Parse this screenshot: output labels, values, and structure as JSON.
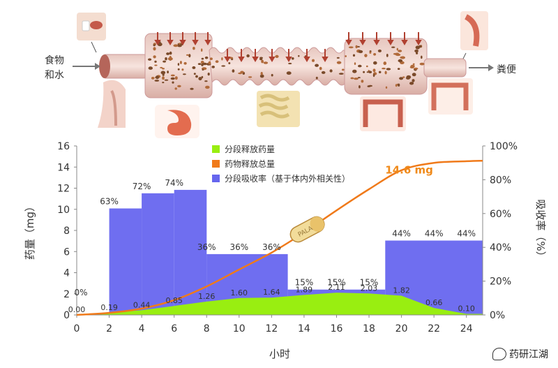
{
  "diagram": {
    "input_label_line1": "食物",
    "input_label_line2": "和水",
    "output_label": "粪便",
    "pill_text": "PALA"
  },
  "chart_data": {
    "type": "bar",
    "xlabel": "小时",
    "ylabel_left": "药量（mg）",
    "ylabel_right": "吸收率（%）",
    "x_ticks": [
      "0",
      "2",
      "4",
      "6",
      "8",
      "10",
      "12",
      "14",
      "16",
      "18",
      "20",
      "22",
      "24"
    ],
    "y_left_ticks": [
      "0",
      "2",
      "4",
      "6",
      "8",
      "10",
      "12",
      "14",
      "16"
    ],
    "y_right_ticks": [
      "0%",
      "20%",
      "40%",
      "60%",
      "80%",
      "100%"
    ],
    "ylim_left": [
      0,
      16
    ],
    "ylim_right": [
      0,
      100
    ],
    "legend": {
      "placement": "top-center",
      "items": [
        {
          "name": "分段释放药量",
          "color": "#99ee11"
        },
        {
          "name": "药物释放总量",
          "color": "#f07a1a"
        },
        {
          "name": "分段吸收率（基于体内外相关性）",
          "color": "#6666ee"
        }
      ]
    },
    "absorption_series": {
      "name": "分段吸收率（基于体内外相关性）",
      "color": "#6f6ef0",
      "segments": [
        {
          "x0": 0,
          "x1": 2,
          "value": 0,
          "label": "0%"
        },
        {
          "x0": 2,
          "x1": 4,
          "value": 63,
          "label": "63%"
        },
        {
          "x0": 4,
          "x1": 6,
          "value": 72,
          "label": "72%"
        },
        {
          "x0": 6,
          "x1": 8,
          "value": 74,
          "label": "74%"
        },
        {
          "x0": 8,
          "x1": 13,
          "value": 36,
          "label": "36%"
        },
        {
          "x0": 13,
          "x1": 19,
          "value": 15,
          "label": "15%"
        },
        {
          "x0": 19,
          "x1": 25,
          "value": 44,
          "label": "44%"
        }
      ],
      "value_labels": [
        {
          "x": 0,
          "label": "0%"
        },
        {
          "x": 2,
          "label": "63%"
        },
        {
          "x": 4,
          "label": "72%"
        },
        {
          "x": 6,
          "label": "74%"
        },
        {
          "x": 8,
          "label": "36%"
        },
        {
          "x": 10,
          "label": "36%"
        },
        {
          "x": 12,
          "label": "36%"
        },
        {
          "x": 14,
          "label": "15%"
        },
        {
          "x": 16,
          "label": "15%"
        },
        {
          "x": 18,
          "label": "15%"
        },
        {
          "x": 20,
          "label": "44%"
        },
        {
          "x": 22,
          "label": "44%"
        },
        {
          "x": 24,
          "label": "44%"
        }
      ]
    },
    "release_series": {
      "name": "分段释放药量",
      "color": "#99ee11",
      "x": [
        0,
        2,
        4,
        6,
        8,
        10,
        12,
        14,
        16,
        18,
        20,
        22,
        24
      ],
      "values": [
        0.0,
        0.19,
        0.44,
        0.85,
        1.26,
        1.6,
        1.64,
        1.89,
        2.11,
        2.03,
        1.82,
        0.66,
        0.1
      ],
      "labels": [
        "0.00",
        "0.19",
        "0.44",
        "0.85",
        "1.26",
        "1.60",
        "1.64",
        "1.89",
        "2.11",
        "2.03",
        "1.82",
        "0.66",
        "0.10"
      ]
    },
    "total_series": {
      "name": "药物释放总量",
      "color": "#f07a1a",
      "x": [
        0,
        2,
        4,
        6,
        8,
        10,
        12,
        14,
        16,
        18,
        20,
        22,
        24,
        25
      ],
      "values": [
        0.0,
        0.2,
        0.6,
        1.4,
        2.7,
        4.3,
        5.9,
        7.8,
        9.9,
        11.9,
        13.7,
        14.4,
        14.55,
        14.6
      ]
    },
    "annotation": {
      "text": "14.6 mg",
      "color": "#f08a1a"
    }
  },
  "watermark": {
    "text": "药研江湖"
  }
}
